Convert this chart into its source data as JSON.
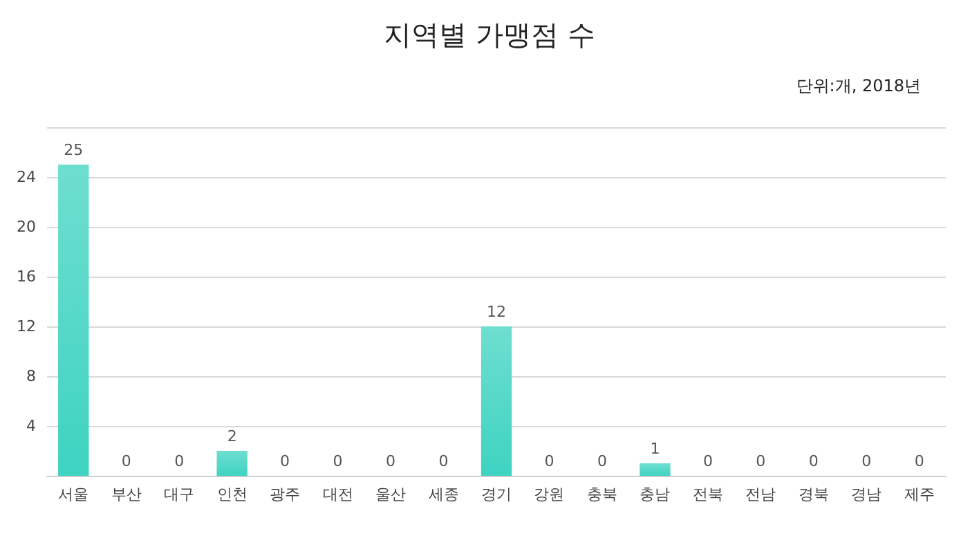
{
  "chart_data": {
    "type": "bar",
    "title": "지역별 가맹점 수",
    "annotations": [
      "단위:개, 2018년"
    ],
    "categories": [
      "서울",
      "부산",
      "대구",
      "인천",
      "광주",
      "대전",
      "울산",
      "세종",
      "경기",
      "강원",
      "충북",
      "충남",
      "전북",
      "전남",
      "경북",
      "경남",
      "제주"
    ],
    "values": [
      25,
      0,
      0,
      2,
      0,
      0,
      0,
      0,
      12,
      0,
      0,
      1,
      0,
      0,
      0,
      0,
      0
    ],
    "color": "#3ed3c1",
    "ylim": [
      0,
      28
    ],
    "yticks": [
      {
        "value": 0,
        "label": null
      },
      4,
      8,
      12,
      16,
      20,
      24,
      {
        "value": 28,
        "label": null
      }
    ],
    "grid": "y",
    "data_labels": true
  }
}
